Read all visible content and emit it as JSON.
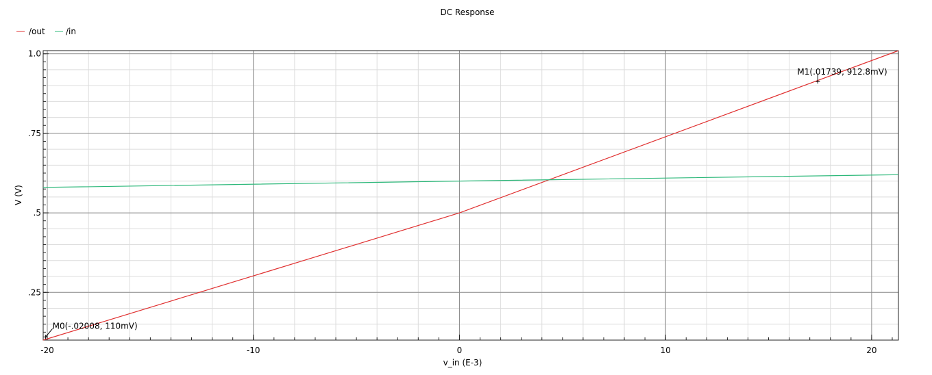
{
  "chart_data": {
    "type": "line",
    "title": "DC Response",
    "xlabel": "v_in (E-3)",
    "ylabel": "V (V)",
    "xlim": [
      -20.2,
      21.3
    ],
    "ylim": [
      0.1,
      1.01
    ],
    "xticks": [
      -20,
      -10,
      0,
      10,
      20
    ],
    "xtick_labels": [
      "-20",
      "-10",
      "0",
      "10",
      "20"
    ],
    "yticks": [
      0.25,
      0.5,
      0.75,
      1.0
    ],
    "ytick_labels": [
      ".25",
      ".5",
      ".75",
      "1.0"
    ],
    "grid": true,
    "legend_position": "top-left",
    "series": [
      {
        "name": "/out",
        "color": "#e03030",
        "x": [
          -20.2,
          0,
          21.3
        ],
        "y": [
          0.1,
          0.5,
          1.01
        ]
      },
      {
        "name": "/in",
        "color": "#2db87a",
        "x": [
          -20.2,
          0,
          21.3
        ],
        "y": [
          0.58,
          0.6,
          0.62
        ]
      }
    ],
    "markers": [
      {
        "label": "M0(-.02008, 110mV)",
        "x": -20.08,
        "y": 0.11
      },
      {
        "label": "M1(.01739, 912.8mV)",
        "x": 17.39,
        "y": 0.9128
      }
    ]
  }
}
